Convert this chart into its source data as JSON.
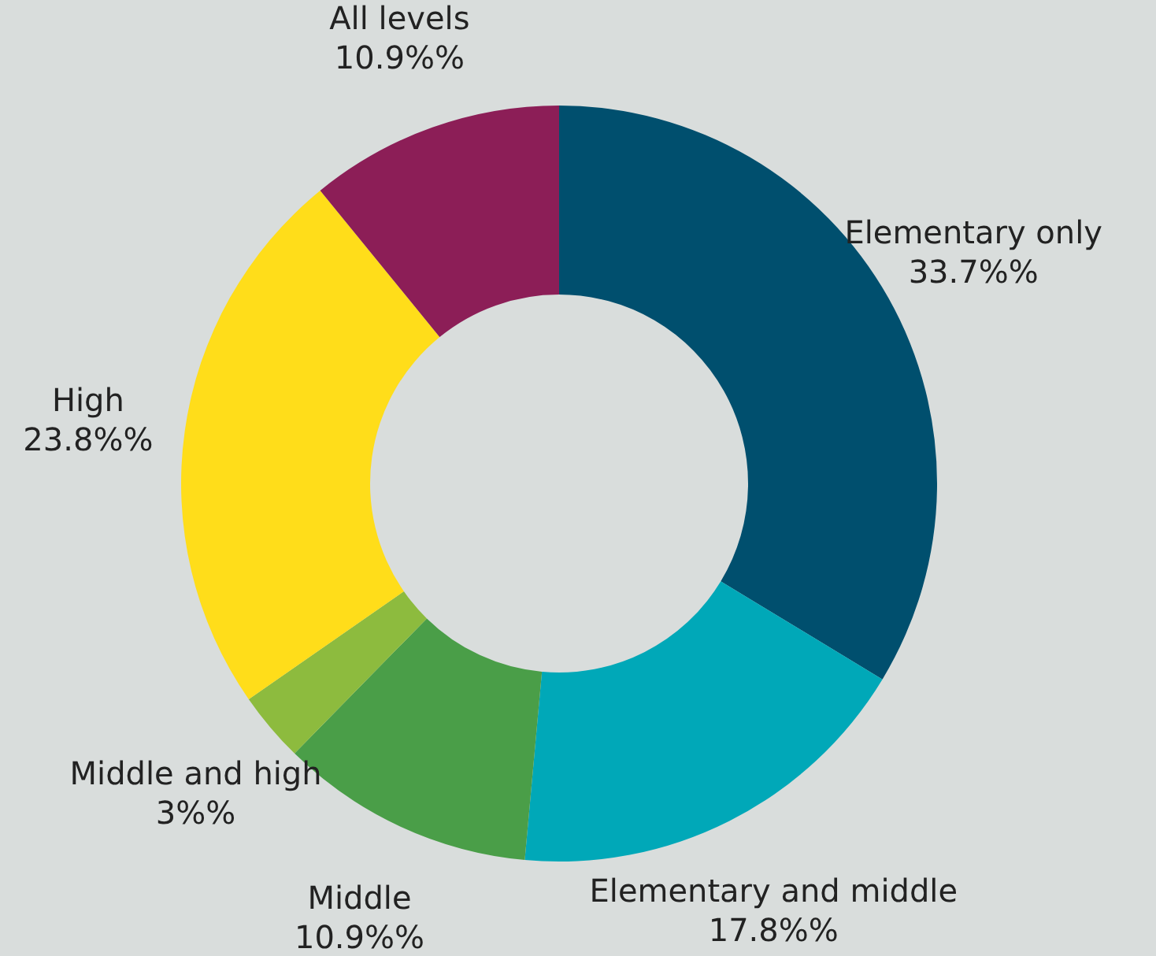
{
  "chart_data": {
    "type": "donut",
    "categories": [
      "Elementary only",
      "Elementary and middle",
      "Middle",
      "Middle and high",
      "High",
      "All levels"
    ],
    "values": [
      33.7,
      17.8,
      10.9,
      3,
      23.8,
      10.9
    ],
    "value_labels": [
      "33.7%%",
      "17.8%%",
      "10.9%%",
      "3%%",
      "23.8%%",
      "10.9%%"
    ],
    "colors": [
      "#004f6e",
      "#00a8b8",
      "#4a9e48",
      "#8dbb3e",
      "#ffdd1a",
      "#8c1e57"
    ],
    "legend": false
  }
}
